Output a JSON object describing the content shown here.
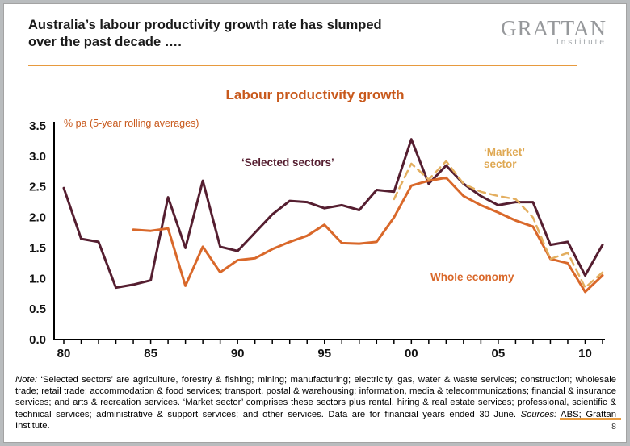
{
  "slide": {
    "title": "Australia’s labour productivity growth rate has slumped\nover the past decade  ….",
    "page_number": "8"
  },
  "logo": {
    "name": "GRATTAN",
    "subtitle": "Institute"
  },
  "chart": {
    "title": "Labour productivity growth",
    "subtitle": "% pa (5-year rolling averages)",
    "labels": {
      "selected": "‘Selected sectors’",
      "market": "‘Market’\nsector",
      "whole": "Whole economy"
    }
  },
  "chart_data": {
    "type": "line",
    "title": "Labour productivity growth",
    "subtitle": "% pa (5-year rolling averages)",
    "xlim": [
      1980,
      2011
    ],
    "ylim": [
      0,
      3.5
    ],
    "ytick_step": 0.5,
    "grid": false,
    "xtick_years": [
      1980,
      1985,
      1990,
      1995,
      2000,
      2005,
      2010
    ],
    "xtick_labels": [
      "80",
      "85",
      "90",
      "95",
      "00",
      "05",
      "10"
    ],
    "series": [
      {
        "id": "selected-sectors",
        "name": "‘Selected sectors’",
        "color": "#551e30",
        "style": "solid",
        "x": [
          1980,
          1981,
          1982,
          1983,
          1984,
          1985,
          1986,
          1987,
          1988,
          1989,
          1990,
          1991,
          1992,
          1993,
          1994,
          1995,
          1996,
          1997,
          1998,
          1999,
          2000,
          2001,
          2002,
          2003,
          2004,
          2005,
          2006,
          2007,
          2008,
          2009,
          2010,
          2011
        ],
        "values": [
          2.48,
          1.65,
          1.6,
          0.85,
          0.9,
          0.97,
          2.33,
          1.5,
          2.6,
          1.52,
          1.45,
          1.75,
          2.05,
          2.27,
          2.25,
          2.15,
          2.2,
          2.12,
          2.45,
          2.42,
          3.28,
          2.55,
          2.85,
          2.55,
          2.35,
          2.2,
          2.25,
          2.25,
          1.55,
          1.6,
          1.05,
          1.55
        ]
      },
      {
        "id": "whole-economy",
        "name": "Whole economy",
        "color": "#d9682a",
        "style": "solid",
        "x": [
          1984,
          1985,
          1986,
          1987,
          1988,
          1989,
          1990,
          1991,
          1992,
          1993,
          1994,
          1995,
          1996,
          1997,
          1998,
          1999,
          2000,
          2001,
          2002,
          2003,
          2004,
          2005,
          2006,
          2007,
          2008,
          2009,
          2010,
          2011
        ],
        "values": [
          1.8,
          1.78,
          1.82,
          0.88,
          1.52,
          1.1,
          1.3,
          1.33,
          1.48,
          1.6,
          1.7,
          1.88,
          1.58,
          1.57,
          1.6,
          2.0,
          2.52,
          2.6,
          2.65,
          2.35,
          2.2,
          2.08,
          1.95,
          1.85,
          1.32,
          1.25,
          0.78,
          1.05
        ]
      },
      {
        "id": "market-sector",
        "name": "‘Market’ sector",
        "color": "#e3ae5f",
        "style": "dashed",
        "x": [
          1999,
          2000,
          2001,
          2002,
          2003,
          2004,
          2005,
          2006,
          2007,
          2008,
          2009,
          2010,
          2011
        ],
        "values": [
          2.3,
          2.88,
          2.62,
          2.92,
          2.55,
          2.42,
          2.35,
          2.3,
          2.0,
          1.32,
          1.42,
          0.85,
          1.1
        ]
      }
    ]
  },
  "note": {
    "label": "Note:",
    "body": " ‘Selected sectors’ are agriculture, forestry & fishing; mining; manufacturing; electricity, gas, water & waste services; construction; wholesale trade; retail trade; accommodation & food services; transport, postal & warehousing; information, media & telecommunications; financial & insurance services; and arts & recreation services. ‘Market sector’ comprises these sectors plus rental, hiring & real estate services; professional, scientific & technical services; administrative & support services; and other services. Data are for financial years ended 30 June. ",
    "sources_label": "Sources:",
    "sources_text": " ABS; Grattan Institute."
  }
}
